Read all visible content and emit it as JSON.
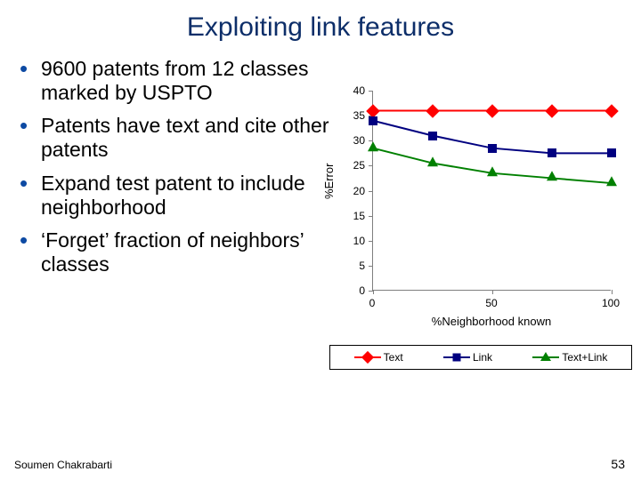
{
  "title": "Exploiting link features",
  "bullets": [
    "9600 patents from 12 classes marked by USPTO",
    "Patents have text and cite other patents",
    "Expand test patent to include neighborhood",
    "‘Forget’ fraction of neighbors’ classes"
  ],
  "chart": {
    "type": "line",
    "ylabel": "%Error",
    "xlabel": "%Neighborhood known",
    "ylim": [
      0,
      40
    ],
    "ytick_step": 5,
    "xlim": [
      0,
      100
    ],
    "xtick_step": 50,
    "axis_color": "#7f7f7f",
    "background_color": "#ffffff",
    "series": [
      {
        "name": "Text",
        "color": "#ff0000",
        "marker": "diamond",
        "x": [
          0,
          25,
          50,
          75,
          100
        ],
        "y": [
          36,
          36,
          36,
          36,
          36
        ]
      },
      {
        "name": "Link",
        "color": "#000080",
        "marker": "square",
        "x": [
          0,
          25,
          50,
          75,
          100
        ],
        "y": [
          34,
          31,
          28.5,
          27.5,
          27.5
        ]
      },
      {
        "name": "Text+Link",
        "color": "#008000",
        "marker": "triangle",
        "x": [
          0,
          25,
          50,
          75,
          100
        ],
        "y": [
          28.5,
          25.5,
          23.5,
          22.5,
          21.5
        ]
      }
    ],
    "line_width": 2
  },
  "footer": {
    "author": "Soumen Chakrabarti",
    "page": "53"
  }
}
